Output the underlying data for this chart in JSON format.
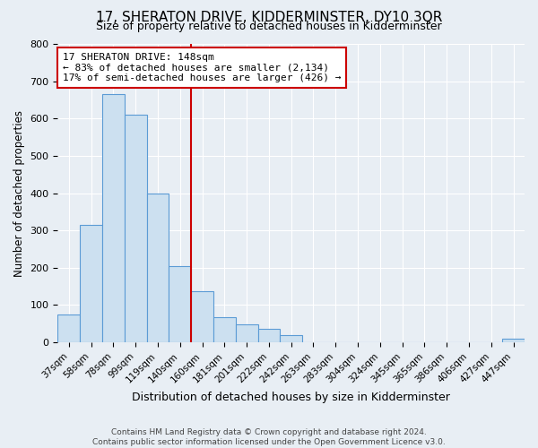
{
  "title": "17, SHERATON DRIVE, KIDDERMINSTER, DY10 3QR",
  "subtitle": "Size of property relative to detached houses in Kidderminster",
  "xlabel": "Distribution of detached houses by size in Kidderminster",
  "ylabel": "Number of detached properties",
  "categories": [
    "37sqm",
    "58sqm",
    "78sqm",
    "99sqm",
    "119sqm",
    "140sqm",
    "160sqm",
    "181sqm",
    "201sqm",
    "222sqm",
    "242sqm",
    "263sqm",
    "283sqm",
    "304sqm",
    "324sqm",
    "345sqm",
    "365sqm",
    "386sqm",
    "406sqm",
    "427sqm",
    "447sqm"
  ],
  "values": [
    75,
    315,
    665,
    610,
    400,
    205,
    137,
    68,
    48,
    37,
    20,
    0,
    0,
    0,
    0,
    0,
    0,
    0,
    0,
    0,
    10
  ],
  "bar_color": "#cce0f0",
  "bar_edge_color": "#5b9bd5",
  "background_color": "#e8eef4",
  "annotation_line1": "17 SHERATON DRIVE: 148sqm",
  "annotation_line2": "← 83% of detached houses are smaller (2,134)",
  "annotation_line3": "17% of semi-detached houses are larger (426) →",
  "vline_color": "#cc0000",
  "annotation_box_facecolor": "#ffffff",
  "annotation_box_edgecolor": "#cc0000",
  "ylim": [
    0,
    800
  ],
  "yticks": [
    0,
    100,
    200,
    300,
    400,
    500,
    600,
    700,
    800
  ],
  "title_fontsize": 11,
  "subtitle_fontsize": 9,
  "footer1": "Contains HM Land Registry data © Crown copyright and database right 2024.",
  "footer2": "Contains public sector information licensed under the Open Government Licence v3.0."
}
